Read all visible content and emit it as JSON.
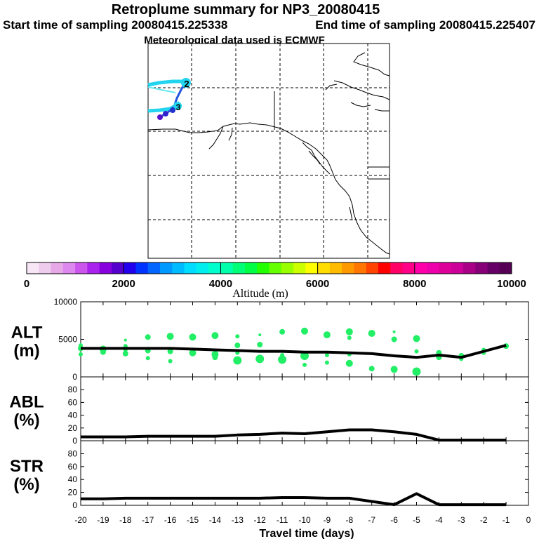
{
  "header": {
    "title": "Retroplume summary for NP3_20080415",
    "start_label": "Start time of sampling 20080415.225338",
    "end_label": "End time of sampling 20080415.225407",
    "met_label": "Meteorological data used is ECMWF"
  },
  "map": {
    "markers": [
      "2",
      "3"
    ],
    "trajectory_color": "#22d4ee",
    "path_color": "#2255dd"
  },
  "colorbar": {
    "axis_label": "Altitude (m)",
    "ticks": [
      "0",
      "2000",
      "4000",
      "6000",
      "8000",
      "10000"
    ],
    "range": [
      0,
      10000
    ],
    "colors": [
      "#f6e6f6",
      "#eeccee",
      "#e6a8e6",
      "#dd88ee",
      "#cc55ee",
      "#aa22ee",
      "#8800dd",
      "#5500cc",
      "#2200ee",
      "#0033ff",
      "#0066ff",
      "#0099ff",
      "#00bbff",
      "#00ddff",
      "#00eeee",
      "#00ffcc",
      "#00ffaa",
      "#00ff77",
      "#00ff44",
      "#22ff00",
      "#66ff00",
      "#99ff00",
      "#ccff00",
      "#ffff00",
      "#ffdd00",
      "#ffbb00",
      "#ff9900",
      "#ff7700",
      "#ff4400",
      "#ff0000",
      "#ff0066",
      "#ff0088",
      "#ff00aa",
      "#ee00aa",
      "#dd0099",
      "#cc0099",
      "#aa0088",
      "#880077",
      "#660066",
      "#550055"
    ]
  },
  "x_axis": {
    "label": "Travel time (days)",
    "ticks": [
      "-20",
      "-19",
      "-18",
      "-17",
      "-16",
      "-15",
      "-14",
      "-13",
      "-12",
      "-11",
      "-10",
      "-9",
      "-8",
      "-7",
      "-6",
      "-5",
      "-4",
      "-3",
      "-2",
      "-1",
      "0"
    ]
  },
  "chart_data": [
    {
      "type": "scatter",
      "panel": "ALT",
      "ylabel_line1": "ALT",
      "ylabel_line2": "(m)",
      "xlim": [
        -20,
        0
      ],
      "ylim": [
        0,
        10000
      ],
      "y_ticks": [
        "0",
        "5000",
        "10000"
      ],
      "y_tick_values": [
        0,
        5000,
        10000
      ],
      "point_color": "#22ee66",
      "points": [
        {
          "x": -20.0,
          "y": 4200,
          "s": 3
        },
        {
          "x": -20.0,
          "y": 3800,
          "s": 4
        },
        {
          "x": -20.0,
          "y": 3000,
          "s": 3
        },
        {
          "x": -19.0,
          "y": 3700,
          "s": 5
        },
        {
          "x": -19.0,
          "y": 3300,
          "s": 4
        },
        {
          "x": -18.0,
          "y": 4900,
          "s": 2
        },
        {
          "x": -18.0,
          "y": 4100,
          "s": 3
        },
        {
          "x": -18.0,
          "y": 3600,
          "s": 3
        },
        {
          "x": -18.0,
          "y": 3100,
          "s": 4
        },
        {
          "x": -17.0,
          "y": 5300,
          "s": 4
        },
        {
          "x": -17.0,
          "y": 3500,
          "s": 4
        },
        {
          "x": -17.0,
          "y": 2500,
          "s": 3
        },
        {
          "x": -16.0,
          "y": 5400,
          "s": 5
        },
        {
          "x": -16.0,
          "y": 3400,
          "s": 4
        },
        {
          "x": -16.0,
          "y": 2100,
          "s": 3
        },
        {
          "x": -15.0,
          "y": 5300,
          "s": 5
        },
        {
          "x": -15.0,
          "y": 3200,
          "s": 5
        },
        {
          "x": -14.0,
          "y": 5500,
          "s": 5
        },
        {
          "x": -14.0,
          "y": 3000,
          "s": 5
        },
        {
          "x": -14.0,
          "y": 2600,
          "s": 4
        },
        {
          "x": -13.0,
          "y": 5400,
          "s": 3
        },
        {
          "x": -13.0,
          "y": 4200,
          "s": 4
        },
        {
          "x": -13.0,
          "y": 3200,
          "s": 3
        },
        {
          "x": -13.0,
          "y": 2200,
          "s": 6
        },
        {
          "x": -12.0,
          "y": 5600,
          "s": 2
        },
        {
          "x": -12.0,
          "y": 4300,
          "s": 4
        },
        {
          "x": -12.0,
          "y": 2400,
          "s": 6
        },
        {
          "x": -11.0,
          "y": 6000,
          "s": 4
        },
        {
          "x": -11.0,
          "y": 3400,
          "s": 2
        },
        {
          "x": -11.0,
          "y": 2300,
          "s": 6
        },
        {
          "x": -11.0,
          "y": 2900,
          "s": 3
        },
        {
          "x": -10.0,
          "y": 6100,
          "s": 5
        },
        {
          "x": -10.0,
          "y": 2800,
          "s": 6
        },
        {
          "x": -10.0,
          "y": 1600,
          "s": 3
        },
        {
          "x": -9.0,
          "y": 5600,
          "s": 5
        },
        {
          "x": -9.0,
          "y": 2900,
          "s": 3
        },
        {
          "x": -9.0,
          "y": 1900,
          "s": 3
        },
        {
          "x": -8.0,
          "y": 6000,
          "s": 5
        },
        {
          "x": -8.0,
          "y": 5200,
          "s": 3
        },
        {
          "x": -8.0,
          "y": 3000,
          "s": 3
        },
        {
          "x": -8.0,
          "y": 1800,
          "s": 5
        },
        {
          "x": -7.0,
          "y": 5800,
          "s": 5
        },
        {
          "x": -7.0,
          "y": 1100,
          "s": 4
        },
        {
          "x": -6.0,
          "y": 6000,
          "s": 2
        },
        {
          "x": -6.0,
          "y": 5000,
          "s": 4
        },
        {
          "x": -6.0,
          "y": 1000,
          "s": 5
        },
        {
          "x": -5.0,
          "y": 5100,
          "s": 5
        },
        {
          "x": -5.0,
          "y": 3400,
          "s": 3
        },
        {
          "x": -5.0,
          "y": 700,
          "s": 6
        },
        {
          "x": -4.0,
          "y": 3200,
          "s": 4
        },
        {
          "x": -4.0,
          "y": 2600,
          "s": 4
        },
        {
          "x": -3.0,
          "y": 2800,
          "s": 4
        },
        {
          "x": -3.0,
          "y": 2400,
          "s": 3
        },
        {
          "x": -2.0,
          "y": 3600,
          "s": 3
        },
        {
          "x": -2.0,
          "y": 3200,
          "s": 3
        },
        {
          "x": -1.0,
          "y": 4100,
          "s": 4
        }
      ],
      "line": {
        "x": [
          -20,
          -19,
          -18,
          -17,
          -16,
          -15,
          -14,
          -13,
          -12,
          -11,
          -10,
          -9,
          -8,
          -7,
          -6,
          -5,
          -4,
          -3,
          -2,
          -1
        ],
        "y": [
          3800,
          3800,
          3800,
          3800,
          3800,
          3700,
          3600,
          3500,
          3400,
          3400,
          3300,
          3300,
          3200,
          3100,
          2800,
          2600,
          2900,
          2600,
          3400,
          4200
        ]
      }
    },
    {
      "type": "line",
      "panel": "ABL",
      "ylabel_line1": "ABL",
      "ylabel_line2": "(%)",
      "xlim": [
        -20,
        0
      ],
      "ylim": [
        0,
        100
      ],
      "y_ticks": [
        "0",
        "20",
        "40",
        "60",
        "80"
      ],
      "y_tick_values": [
        0,
        20,
        40,
        60,
        80
      ],
      "x": [
        -20,
        -19,
        -18,
        -17,
        -16,
        -15,
        -14,
        -13,
        -12,
        -11,
        -10,
        -9,
        -8,
        -7,
        -6,
        -5,
        -4,
        -3,
        -2,
        -1
      ],
      "y": [
        6,
        6,
        6,
        7,
        7,
        7,
        7,
        9,
        10,
        12,
        11,
        14,
        17,
        17,
        14,
        10,
        1,
        1,
        1,
        1
      ]
    },
    {
      "type": "line",
      "panel": "STR",
      "ylabel_line1": "STR",
      "ylabel_line2": "(%)",
      "xlim": [
        -20,
        0
      ],
      "ylim": [
        0,
        100
      ],
      "y_ticks": [
        "0",
        "20",
        "40",
        "60",
        "80"
      ],
      "y_tick_values": [
        0,
        20,
        40,
        60,
        80
      ],
      "x": [
        -20,
        -19,
        -18,
        -17,
        -16,
        -15,
        -14,
        -13,
        -12,
        -11,
        -10,
        -9,
        -8,
        -7,
        -6,
        -5,
        -4,
        -3,
        -2,
        -1
      ],
      "y": [
        10,
        10,
        11,
        11,
        11,
        11,
        11,
        11,
        11,
        12,
        12,
        11,
        11,
        6,
        1,
        18,
        1,
        1,
        1,
        1
      ]
    }
  ]
}
